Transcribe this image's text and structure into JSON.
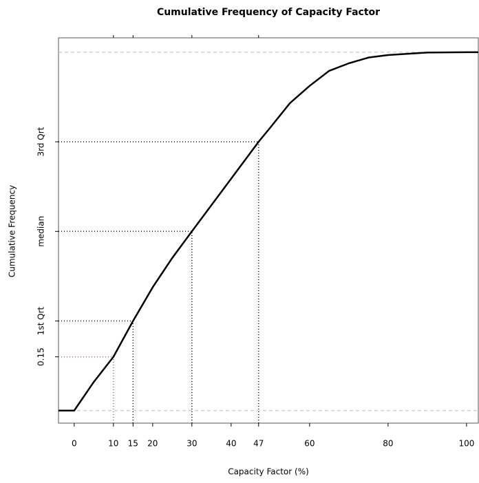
{
  "chart_data": {
    "type": "line",
    "title": "Cumulative Frequency of Capacity Factor",
    "x_label": "Capacity Factor (%)",
    "y_label": "Cumulative Frequency",
    "x": [
      -4,
      0,
      5,
      10,
      15,
      20,
      25,
      30,
      40,
      47,
      50,
      55,
      60,
      65,
      70,
      75,
      80,
      90,
      100,
      103
    ],
    "series": [
      {
        "color": "#000000",
        "values": [
          0,
          0,
          0.08,
          0.15,
          0.25,
          0.344,
          0.426,
          0.5,
          0.647,
          0.75,
          0.79,
          0.858,
          0.906,
          0.948,
          0.969,
          0.985,
          0.992,
          0.999,
          1,
          1
        ]
      }
    ],
    "xlim": [
      -4,
      103
    ],
    "ylim": [
      -0.035,
      1.04
    ],
    "xticks": [
      0,
      10,
      15,
      20,
      30,
      40,
      47,
      60,
      80,
      100
    ],
    "yticks": [
      0.15,
      {
        "value": 0.25,
        "label": "1st Qrt"
      },
      {
        "value": 0.5,
        "label": "median"
      },
      {
        "value": 0.75,
        "label": "3rd Qrt"
      }
    ],
    "reference_lines": [
      {
        "x": 10,
        "y": 0.15,
        "color": "#b06060"
      },
      {
        "x": 15,
        "y": 0.25,
        "color": "#000000"
      },
      {
        "x": 30,
        "y": 0.5,
        "color": "#000000"
      },
      {
        "x": 47,
        "y": 0.75,
        "color": "#000000"
      }
    ],
    "bounds": [
      0,
      1
    ],
    "bounds_color": "#bbbbbb"
  }
}
